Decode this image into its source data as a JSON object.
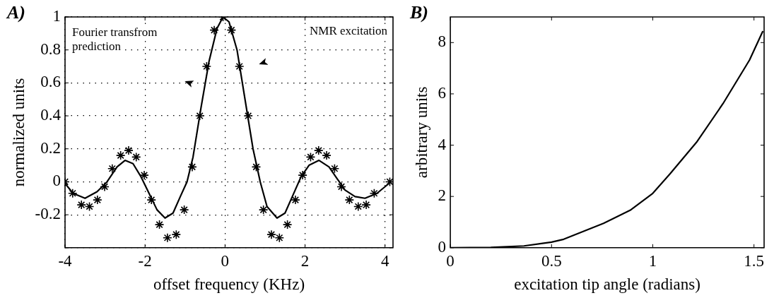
{
  "chart_data": [
    {
      "type": "line",
      "title": "A)",
      "xlabel": "offset frequency (KHz)",
      "ylabel": "normalized units",
      "annotations": [
        "Fourier transfrom prediction",
        "NMR excitation"
      ],
      "xlim": [
        -4,
        4.2
      ],
      "xticks": [
        -4,
        -2,
        0,
        2,
        4
      ],
      "ylim": [
        -0.4,
        1
      ],
      "yticks": [
        {
          "value": -0.4,
          "label": null
        },
        -0.2,
        0,
        0.2,
        0.4,
        0.6,
        0.8,
        1
      ],
      "grid": true,
      "legend": false,
      "series": [
        {
          "type": "line",
          "color": "#000000",
          "marker": "none",
          "line_style": "solid",
          "x": [
            -4,
            -3.8,
            -3.5,
            -3.2,
            -2.95,
            -2.7,
            -2.5,
            -2.3,
            -2.1,
            -1.9,
            -1.7,
            -1.5,
            -1.3,
            -1.1,
            -0.95,
            -0.8,
            -0.6,
            -0.4,
            -0.2,
            -0.05,
            0.1,
            0.3,
            0.5,
            0.7,
            0.88,
            1.05,
            1.3,
            1.5,
            1.7,
            1.9,
            2.1,
            2.35,
            2.6,
            2.8,
            3.0,
            3.25,
            3.5,
            3.8,
            4.1
          ],
          "values": [
            -0.01,
            -0.07,
            -0.1,
            -0.06,
            0.0,
            0.09,
            0.13,
            0.11,
            0.03,
            -0.07,
            -0.17,
            -0.22,
            -0.19,
            -0.08,
            0.0,
            0.15,
            0.45,
            0.73,
            0.93,
            1.0,
            0.97,
            0.8,
            0.5,
            0.2,
            0.0,
            -0.15,
            -0.22,
            -0.19,
            -0.08,
            0.03,
            0.1,
            0.13,
            0.09,
            0.02,
            -0.05,
            -0.09,
            -0.1,
            -0.07,
            -0.01
          ]
        },
        {
          "type": "scatter",
          "color": "#000000",
          "marker": "cross",
          "x": [
            -4.0,
            -3.81,
            -3.59,
            -3.39,
            -3.19,
            -3.01,
            -2.82,
            -2.61,
            -2.41,
            -2.22,
            -2.02,
            -1.84,
            -1.64,
            -1.44,
            -1.22,
            -1.02,
            -0.82,
            -0.63,
            -0.46,
            -0.27,
            -0.05,
            0.16,
            0.36,
            0.58,
            0.78,
            0.96,
            1.16,
            1.36,
            1.56,
            1.76,
            1.94,
            2.14,
            2.34,
            2.54,
            2.74,
            2.91,
            3.11,
            3.33,
            3.53,
            3.73,
            4.12
          ],
          "values": [
            0.0,
            -0.07,
            -0.14,
            -0.15,
            -0.11,
            -0.03,
            0.08,
            0.16,
            0.19,
            0.15,
            0.04,
            -0.11,
            -0.26,
            -0.34,
            -0.32,
            -0.17,
            0.09,
            0.4,
            0.7,
            0.92,
            1.0,
            0.92,
            0.7,
            0.4,
            0.09,
            -0.17,
            -0.32,
            -0.34,
            -0.26,
            -0.11,
            0.04,
            0.15,
            0.19,
            0.16,
            0.08,
            -0.03,
            -0.11,
            -0.15,
            -0.14,
            -0.07,
            0.0
          ]
        }
      ]
    },
    {
      "type": "line",
      "title": "B)",
      "xlabel": "excitation tip angle (radians)",
      "ylabel": "arbitrary units",
      "xlim": [
        0,
        1.55
      ],
      "xticks": [
        0,
        0.5,
        1,
        1.5
      ],
      "ylim": [
        0,
        9
      ],
      "yticks": [
        0,
        2,
        4,
        6,
        8
      ],
      "legend": false,
      "series": [
        {
          "type": "line",
          "color": "#000000",
          "marker": "none",
          "line_style": "solid",
          "x": [
            0,
            0.2,
            0.364,
            0.5,
            0.56,
            0.757,
            0.888,
            1.0,
            1.085,
            1.216,
            1.347,
            1.478,
            1.544
          ],
          "values": [
            0,
            0.01,
            0.07,
            0.22,
            0.33,
            0.95,
            1.46,
            2.12,
            2.88,
            4.11,
            5.62,
            7.32,
            8.45
          ]
        }
      ]
    }
  ]
}
